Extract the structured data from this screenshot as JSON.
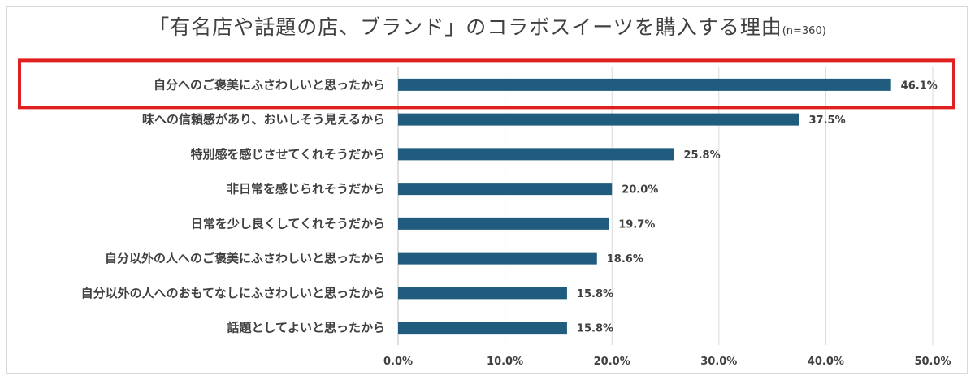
{
  "chart_data": {
    "type": "bar",
    "orientation": "horizontal",
    "title": "「有名店や話題の店、ブランド」のコラボスイーツを購入する理由",
    "title_note": "(n=360)",
    "categories": [
      "自分へのご褒美にふさわしいと思ったから",
      "味への信頼感があり、おいしそう見えるから",
      "特別感を感じさせてくれそうだから",
      "非日常を感じられそうだから",
      "日常を少し良くしてくれそうだから",
      "自分以外の人へのご褒美にふさわしいと思ったから",
      "自分以外の人へのおもてなしにふさわしいと思ったから",
      "話題としてよいと思ったから"
    ],
    "values": [
      46.1,
      37.5,
      25.8,
      20.0,
      19.7,
      18.6,
      15.8,
      15.8
    ],
    "value_labels": [
      "46.1%",
      "37.5%",
      "25.8%",
      "20.0%",
      "19.7%",
      "18.6%",
      "15.8%",
      "15.8%"
    ],
    "xlim": [
      0,
      50
    ],
    "xticks": [
      "0.0%",
      "10.0%",
      "20.0%",
      "30.0%",
      "40.0%",
      "50.0%"
    ],
    "grid": true,
    "bar_color": "#1f5c7e",
    "highlight_color": "#e02020",
    "highlight_index": 0
  }
}
